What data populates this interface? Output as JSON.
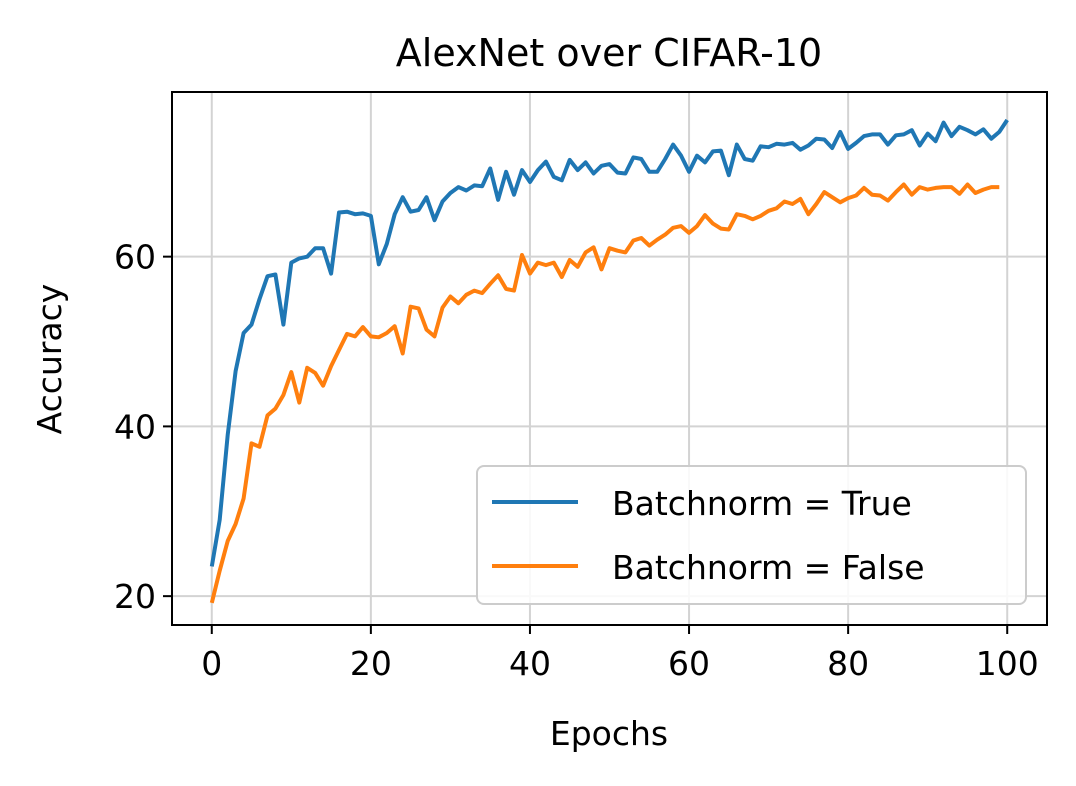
{
  "chart_data": {
    "type": "line",
    "title": "AlexNet over CIFAR-10",
    "xlabel": "Epochs",
    "ylabel": "Accuracy",
    "xlim": [
      -5,
      105
    ],
    "ylim": [
      16.6,
      79.4
    ],
    "xticks": [
      0,
      20,
      40,
      60,
      80,
      100
    ],
    "yticks": [
      20,
      40,
      60
    ],
    "grid": true,
    "legend_position": "lower-right",
    "series": [
      {
        "name": "Batchnorm = True",
        "color": "#1f77b4",
        "x": [
          0,
          1,
          2,
          3,
          4,
          5,
          6,
          7,
          8,
          9,
          10,
          11,
          12,
          13,
          14,
          15,
          16,
          17,
          18,
          19,
          20,
          21,
          22,
          23,
          24,
          25,
          26,
          27,
          28,
          29,
          30,
          31,
          32,
          33,
          34,
          35,
          36,
          37,
          38,
          39,
          40,
          41,
          42,
          43,
          44,
          45,
          46,
          47,
          48,
          49,
          50,
          51,
          52,
          53,
          54,
          55,
          56,
          57,
          58,
          59,
          60,
          61,
          62,
          63,
          64,
          65,
          66,
          67,
          68,
          69,
          70,
          71,
          72,
          73,
          74,
          75,
          76,
          77,
          78,
          79,
          80,
          81,
          82,
          83,
          84,
          85,
          86,
          87,
          88,
          89,
          90,
          91,
          92,
          93,
          94,
          95,
          96,
          97,
          98,
          99,
          100
        ],
        "y": [
          23.5,
          29,
          39,
          46.5,
          51,
          52,
          55,
          57.7,
          57.9,
          52,
          59.3,
          59.8,
          60,
          61,
          61,
          58,
          65.2,
          65.3,
          65,
          65.1,
          64.8,
          59.1,
          61.5,
          65,
          67,
          65.3,
          65.5,
          67,
          64.3,
          66.5,
          67.5,
          68.2,
          67.8,
          68.4,
          68.3,
          70.4,
          66.7,
          70,
          67.3,
          70.2,
          68.8,
          70.2,
          71.2,
          69.4,
          69,
          71.4,
          70.2,
          71.1,
          69.8,
          70.7,
          70.9,
          69.9,
          69.8,
          71.7,
          71.5,
          70,
          70,
          71.5,
          73.2,
          71.9,
          70,
          71.9,
          71.1,
          72.4,
          72.5,
          69.6,
          73.2,
          71.5,
          71.3,
          73,
          72.9,
          73.3,
          73.2,
          73.4,
          72.6,
          73.1,
          73.9,
          73.8,
          72.8,
          74.7,
          72.7,
          73.4,
          74.2,
          74.4,
          74.4,
          73.2,
          74.3,
          74.4,
          74.9,
          73.1,
          74.5,
          73.6,
          75.8,
          74.2,
          75.3,
          74.9,
          74.4,
          75,
          73.9,
          74.7,
          76.1
        ]
      },
      {
        "name": "Batchnorm = False",
        "color": "#ff7f0e",
        "x": [
          0,
          1,
          2,
          3,
          4,
          5,
          6,
          7,
          8,
          9,
          10,
          11,
          12,
          13,
          14,
          15,
          16,
          17,
          18,
          19,
          20,
          21,
          22,
          23,
          24,
          25,
          26,
          27,
          28,
          29,
          30,
          31,
          32,
          33,
          34,
          35,
          36,
          37,
          38,
          39,
          40,
          41,
          42,
          43,
          44,
          45,
          46,
          47,
          48,
          49,
          50,
          51,
          52,
          53,
          54,
          55,
          56,
          57,
          58,
          59,
          60,
          61,
          62,
          63,
          64,
          65,
          66,
          67,
          68,
          69,
          70,
          71,
          72,
          73,
          74,
          75,
          76,
          77,
          78,
          79,
          80,
          81,
          82,
          83,
          84,
          85,
          86,
          87,
          88,
          89,
          90,
          91,
          92,
          93,
          94,
          95,
          96,
          97,
          98,
          99
        ],
        "y": [
          19.2,
          23,
          26.5,
          28.5,
          31.5,
          38,
          37.6,
          41.3,
          42.1,
          43.7,
          46.4,
          42.8,
          46.9,
          46.3,
          44.8,
          47.1,
          49,
          50.9,
          50.6,
          51.7,
          50.6,
          50.5,
          51,
          51.8,
          48.6,
          54.1,
          53.9,
          51.4,
          50.6,
          54,
          55.3,
          54.5,
          55.5,
          56,
          55.7,
          56.8,
          57.8,
          56.2,
          56,
          60.2,
          58,
          59.3,
          59,
          59.3,
          57.6,
          59.6,
          58.8,
          60.5,
          61.1,
          58.5,
          61,
          60.7,
          60.5,
          61.9,
          62.2,
          61.3,
          62,
          62.6,
          63.4,
          63.6,
          62.8,
          63.6,
          64.9,
          63.9,
          63.3,
          63.2,
          65,
          64.8,
          64.4,
          64.8,
          65.4,
          65.7,
          66.5,
          66.2,
          66.8,
          65,
          66.2,
          67.6,
          67,
          66.4,
          66.9,
          67.2,
          68.1,
          67.3,
          67.2,
          66.6,
          67.6,
          68.5,
          67.3,
          68.2,
          67.9,
          68.1,
          68.2,
          68.2,
          67.4,
          68.5,
          67.5,
          67.9,
          68.2,
          68.2
        ]
      }
    ]
  }
}
